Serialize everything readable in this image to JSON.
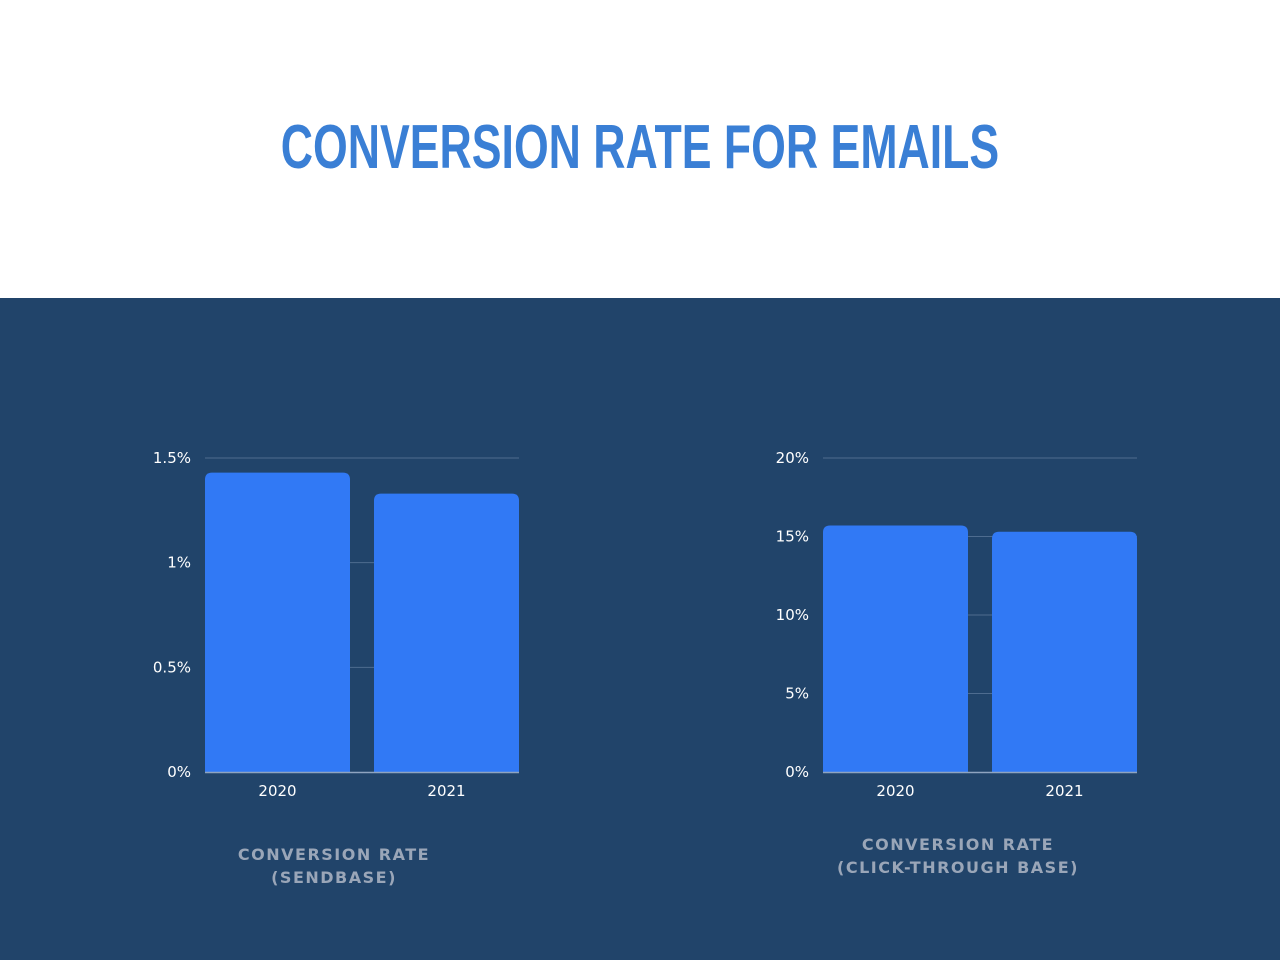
{
  "title": "CONVERSION RATE FOR EMAILS",
  "colors": {
    "title": "#3a7fd5",
    "band_bg": "#21446a",
    "bar": "#3179f5",
    "grid": "#4e6c8f",
    "axis": "#8fa4bf",
    "tick_label": "#ffffff",
    "caption": "#9aa6b8"
  },
  "chart_data": [
    {
      "type": "bar",
      "categories": [
        "2020",
        "2021"
      ],
      "values": [
        1.43,
        1.33
      ],
      "yticks": [
        "0%",
        "0.5%",
        "1%",
        "1.5%"
      ],
      "ylim": [
        0,
        1.5
      ],
      "grid": true,
      "caption": [
        "CONVERSION RATE",
        "(SENDBASE)"
      ]
    },
    {
      "type": "bar",
      "categories": [
        "2020",
        "2021"
      ],
      "values": [
        15.7,
        15.3
      ],
      "yticks": [
        "0%",
        "5%",
        "10%",
        "15%",
        "20%"
      ],
      "ylim": [
        0,
        20
      ],
      "grid": true,
      "caption": [
        "CONVERSION RATE",
        "(CLICK-THROUGH BASE)"
      ]
    }
  ]
}
